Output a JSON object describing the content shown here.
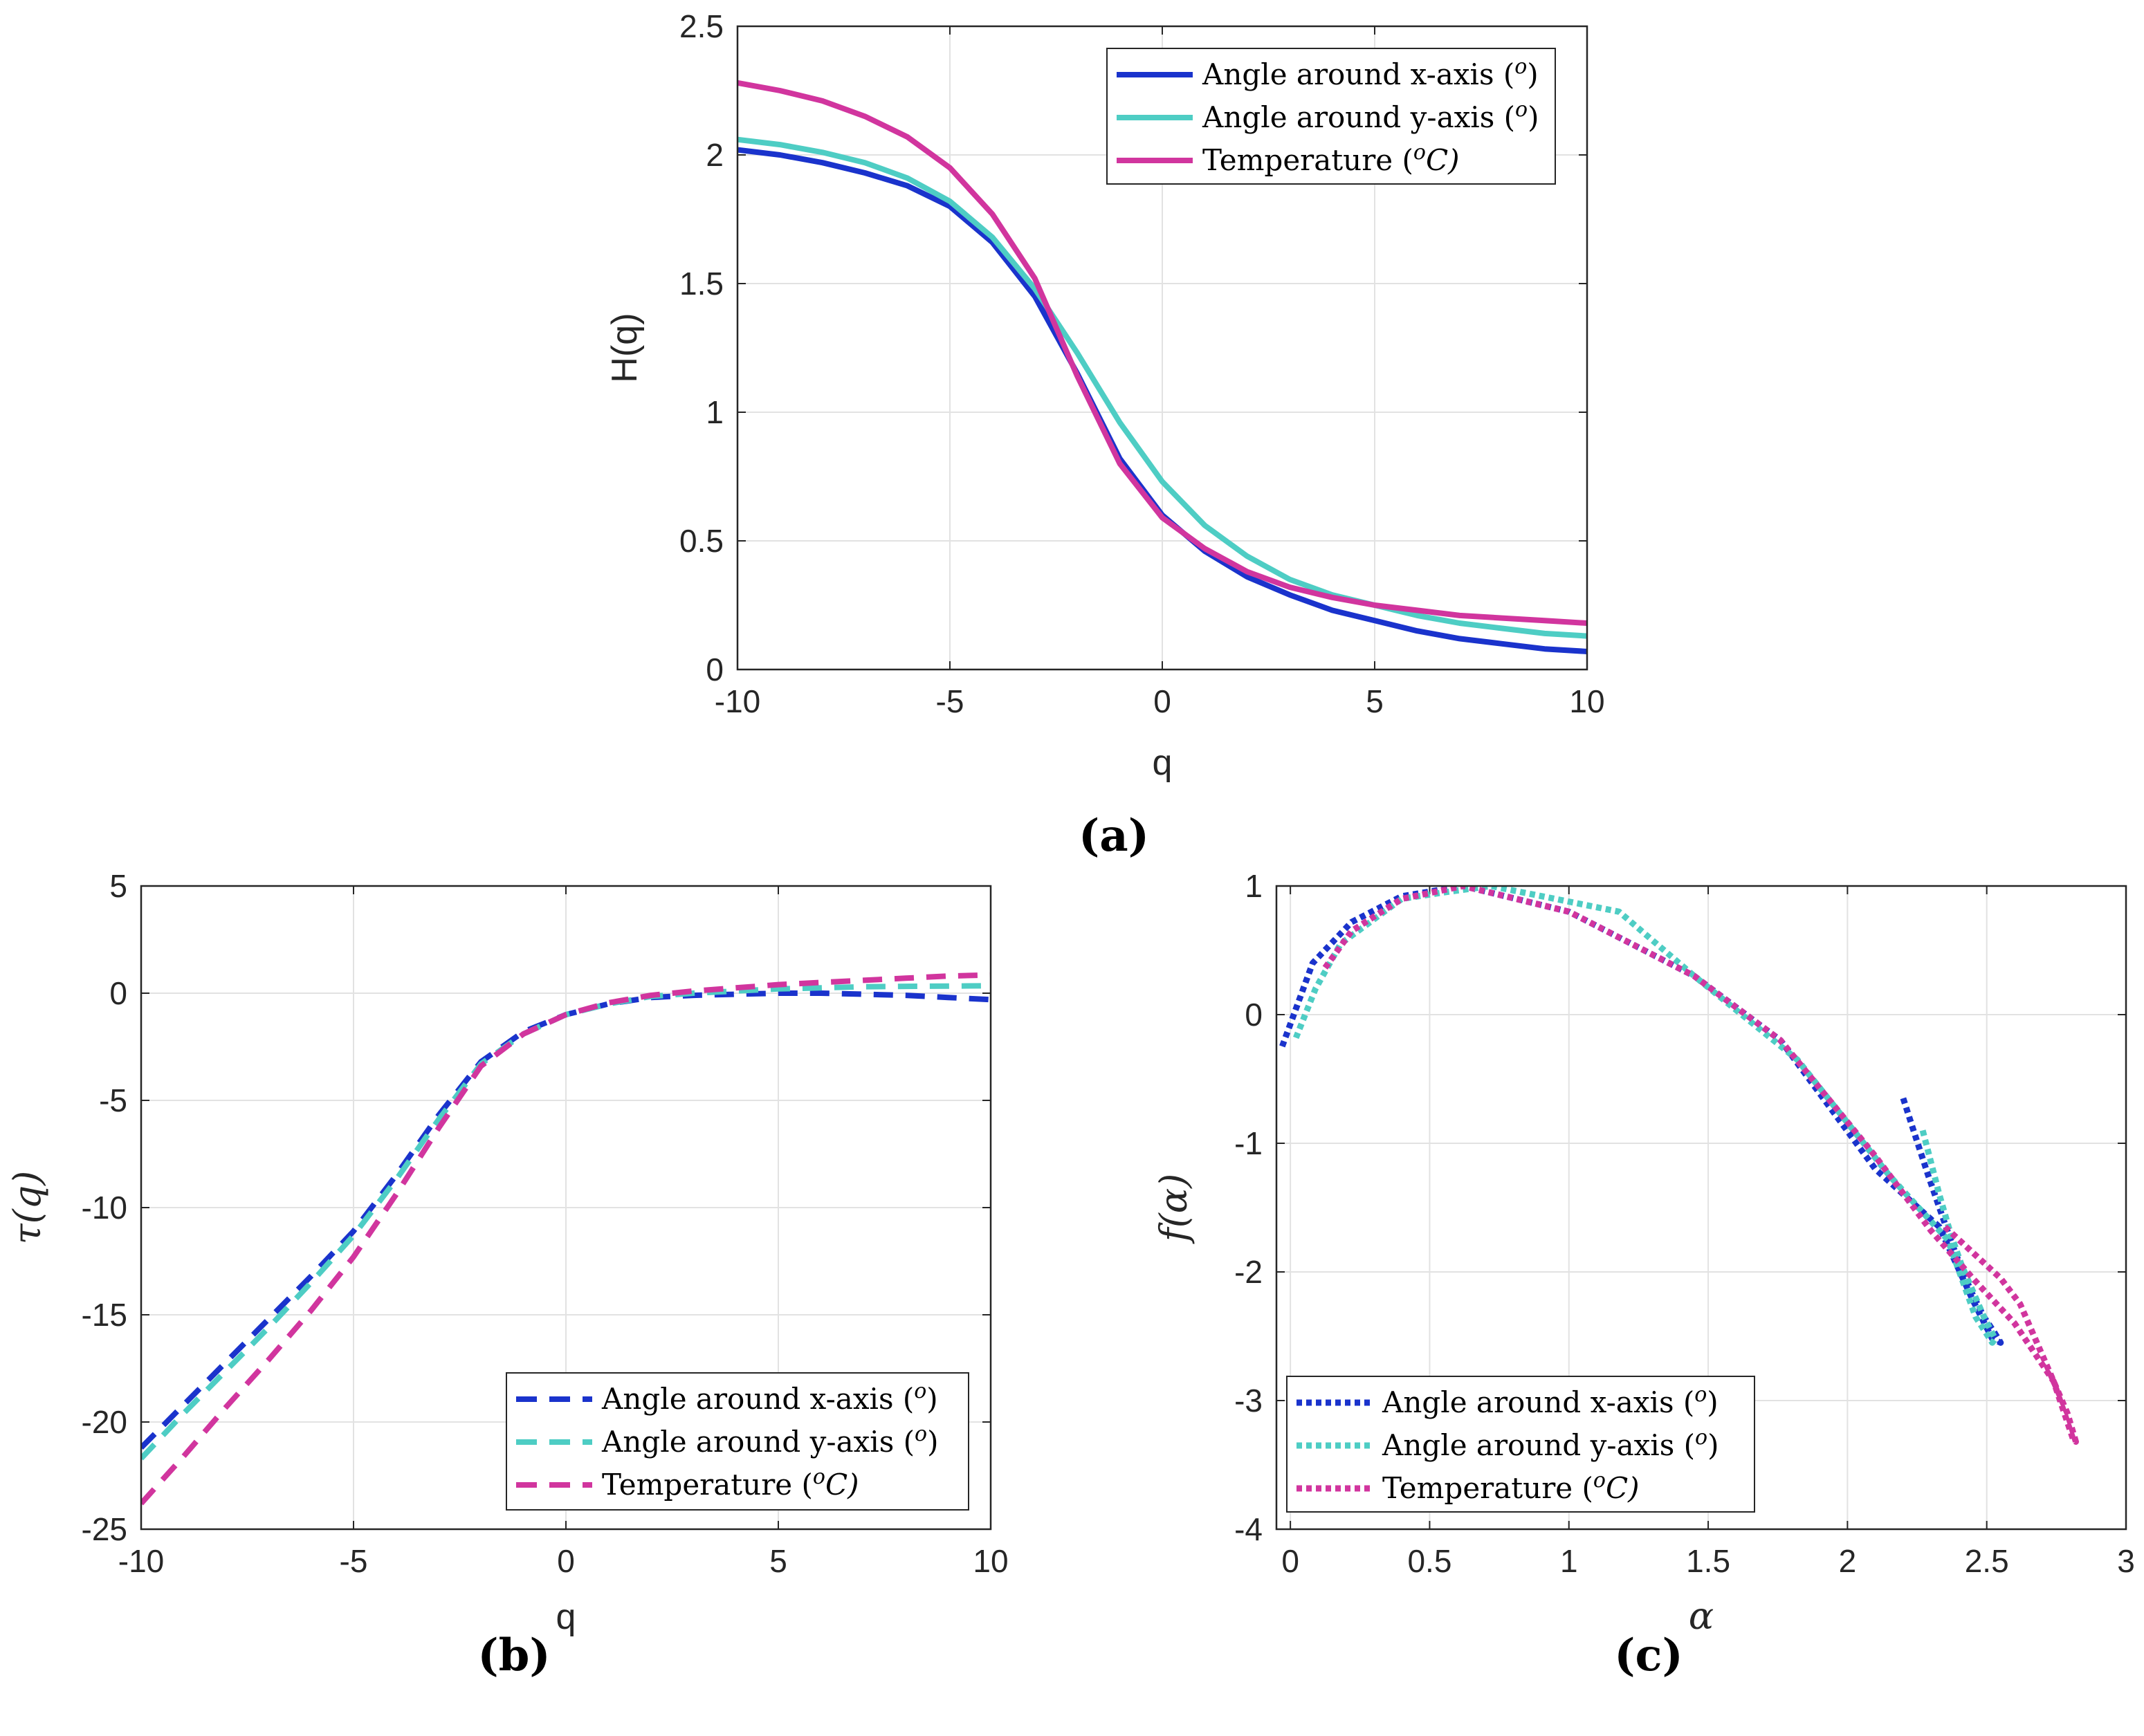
{
  "colors": {
    "x_axis": "#1a33cc",
    "y_axis": "#4ecdc4",
    "temperature": "#d1359e"
  },
  "panels": [
    {
      "caption": "(a)"
    },
    {
      "caption": "(b)"
    },
    {
      "caption": "(c)"
    }
  ],
  "chart_data": [
    {
      "id": "a",
      "type": "line",
      "line_style": "solid",
      "xlabel": "q",
      "ylabel": "H(q)",
      "xlim": [
        -10,
        10
      ],
      "ylim": [
        0,
        2.5
      ],
      "xticks": [
        "-10",
        "-5",
        "0",
        "5",
        "10"
      ],
      "yticks": [
        "0",
        "0.5",
        "1",
        "1.5",
        "2",
        "2.5"
      ],
      "grid": true,
      "legend_position": "top-right",
      "series": [
        {
          "name": "Angle around x-axis (o)",
          "legend_main": "Angle around x-axis (",
          "legend_sup": "o",
          "legend_tail": ")",
          "color_key": "x_axis",
          "x": [
            -10,
            -9,
            -8,
            -7,
            -6,
            -5,
            -4,
            -3,
            -2,
            -1,
            0,
            1,
            2,
            3,
            4,
            5,
            6,
            7,
            8,
            9,
            10
          ],
          "y": [
            2.02,
            2.0,
            1.97,
            1.93,
            1.88,
            1.8,
            1.66,
            1.45,
            1.15,
            0.82,
            0.6,
            0.46,
            0.36,
            0.29,
            0.23,
            0.19,
            0.15,
            0.12,
            0.1,
            0.08,
            0.07
          ]
        },
        {
          "name": "Angle around y-axis (o)",
          "legend_main": "Angle around y-axis (",
          "legend_sup": "o",
          "legend_tail": ")",
          "color_key": "y_axis",
          "x": [
            -10,
            -9,
            -8,
            -7,
            -6,
            -5,
            -4,
            -3,
            -2,
            -1,
            0,
            1,
            2,
            3,
            4,
            5,
            6,
            7,
            8,
            9,
            10
          ],
          "y": [
            2.06,
            2.04,
            2.01,
            1.97,
            1.91,
            1.82,
            1.68,
            1.48,
            1.23,
            0.96,
            0.73,
            0.56,
            0.44,
            0.35,
            0.29,
            0.25,
            0.21,
            0.18,
            0.16,
            0.14,
            0.13
          ]
        },
        {
          "name": "Temperature (oC)",
          "legend_main": "Temperature (",
          "legend_sup": "o",
          "legend_tail": "C)",
          "color_key": "temperature",
          "x": [
            -10,
            -9,
            -8,
            -7,
            -6,
            -5,
            -4,
            -3,
            -2,
            -1,
            0,
            1,
            2,
            3,
            4,
            5,
            6,
            7,
            8,
            9,
            10
          ],
          "y": [
            2.28,
            2.25,
            2.21,
            2.15,
            2.07,
            1.95,
            1.77,
            1.52,
            1.14,
            0.8,
            0.59,
            0.47,
            0.38,
            0.32,
            0.28,
            0.25,
            0.23,
            0.21,
            0.2,
            0.19,
            0.18
          ]
        }
      ]
    },
    {
      "id": "b",
      "type": "line",
      "line_style": "dashed",
      "xlabel": "q",
      "ylabel": "τ(q)",
      "xlim": [
        -10,
        10
      ],
      "ylim": [
        -25,
        5
      ],
      "xticks": [
        "-10",
        "-5",
        "0",
        "5",
        "10"
      ],
      "yticks": [
        "-25",
        "-20",
        "-15",
        "-10",
        "-5",
        "0",
        "5"
      ],
      "grid": true,
      "legend_position": "bottom-right",
      "series": [
        {
          "name": "Angle around x-axis (o)",
          "legend_main": "Angle around x-axis (",
          "legend_sup": "o",
          "legend_tail": ")",
          "color_key": "x_axis",
          "x": [
            -10,
            -9,
            -8,
            -7,
            -6,
            -5,
            -4,
            -3,
            -2,
            -1,
            0,
            1,
            2,
            3,
            4,
            5,
            6,
            7,
            8,
            9,
            10
          ],
          "y": [
            -21.2,
            -19.2,
            -17.2,
            -15.2,
            -13.2,
            -11.1,
            -8.5,
            -5.7,
            -3.2,
            -1.8,
            -1.0,
            -0.5,
            -0.2,
            -0.1,
            -0.05,
            0,
            0,
            -0.05,
            -0.1,
            -0.2,
            -0.3
          ]
        },
        {
          "name": "Angle around y-axis (o)",
          "legend_main": "Angle around y-axis (",
          "legend_sup": "o",
          "legend_tail": ")",
          "color_key": "y_axis",
          "x": [
            -10,
            -9,
            -8,
            -7,
            -6,
            -5,
            -4,
            -3,
            -2,
            -1,
            0,
            1,
            2,
            3,
            4,
            5,
            6,
            7,
            8,
            9,
            10
          ],
          "y": [
            -21.7,
            -19.6,
            -17.6,
            -15.6,
            -13.5,
            -11.3,
            -8.7,
            -5.9,
            -3.3,
            -1.9,
            -1.0,
            -0.5,
            -0.15,
            0,
            0.1,
            0.2,
            0.25,
            0.3,
            0.32,
            0.33,
            0.35
          ]
        },
        {
          "name": "Temperature (oC)",
          "legend_main": "Temperature (",
          "legend_sup": "o",
          "legend_tail": "C)",
          "color_key": "temperature",
          "x": [
            -10,
            -9,
            -8,
            -7,
            -6,
            -5,
            -4,
            -3,
            -2,
            -1,
            0,
            1,
            2,
            3,
            4,
            5,
            6,
            7,
            8,
            9,
            10
          ],
          "y": [
            -23.8,
            -21.6,
            -19.3,
            -17.1,
            -14.8,
            -12.3,
            -9.4,
            -6.3,
            -3.4,
            -1.9,
            -1.0,
            -0.45,
            -0.1,
            0.1,
            0.25,
            0.4,
            0.5,
            0.6,
            0.7,
            0.8,
            0.85
          ]
        }
      ]
    },
    {
      "id": "c",
      "type": "line",
      "line_style": "dotted",
      "xlabel": "α",
      "ylabel": "f(α)",
      "xlim": [
        -0.05,
        3
      ],
      "ylim": [
        -4,
        1
      ],
      "xticks": [
        "0",
        "0.5",
        "1",
        "1.5",
        "2",
        "2.5",
        "3"
      ],
      "yticks": [
        "-4",
        "-3",
        "-2",
        "-1",
        "0",
        "1"
      ],
      "grid": true,
      "legend_position": "bottom-left",
      "series": [
        {
          "name": "Angle around x-axis (o)",
          "legend_main": "Angle around x-axis (",
          "legend_sup": "o",
          "legend_tail": ")",
          "color_key": "x_axis",
          "x": [
            2.2,
            2.24,
            2.29,
            2.33,
            2.37,
            2.41,
            2.45,
            2.49,
            2.53,
            2.55,
            2.52,
            2.45,
            2.33,
            2.1,
            1.76,
            1.45,
            1.0,
            0.62,
            0.4,
            0.22,
            0.08,
            -0.03
          ],
          "y": [
            -0.65,
            -0.92,
            -1.25,
            -1.5,
            -1.75,
            -1.98,
            -2.18,
            -2.35,
            -2.48,
            -2.55,
            -2.52,
            -2.22,
            -1.65,
            -1.2,
            -0.2,
            0.3,
            0.8,
            1.0,
            0.92,
            0.72,
            0.4,
            -0.25
          ]
        },
        {
          "name": "Angle around y-axis (o)",
          "legend_main": "Angle around y-axis (",
          "legend_sup": "o",
          "legend_tail": ")",
          "color_key": "y_axis",
          "x": [
            2.27,
            2.3,
            2.33,
            2.37,
            2.41,
            2.45,
            2.49,
            2.53,
            2.52,
            2.46,
            2.36,
            2.15,
            1.82,
            1.45,
            1.18,
            0.72,
            0.55,
            0.4,
            0.18,
            0.09,
            0.02
          ],
          "y": [
            -0.9,
            -1.15,
            -1.4,
            -1.7,
            -1.95,
            -2.15,
            -2.35,
            -2.52,
            -2.55,
            -2.35,
            -1.75,
            -1.25,
            -0.35,
            0.3,
            0.8,
            1.0,
            0.95,
            0.9,
            0.55,
            0.2,
            -0.18
          ]
        },
        {
          "name": "Temperature (oC)",
          "legend_main": "Temperature (",
          "legend_sup": "o",
          "legend_tail": "C)",
          "color_key": "temperature",
          "x": [
            2.35,
            2.45,
            2.55,
            2.62,
            2.68,
            2.74,
            2.79,
            2.82,
            2.81,
            2.74,
            2.6,
            2.45,
            2.3,
            2.1,
            1.76,
            1.45,
            1.0,
            0.62,
            0.4,
            0.22,
            0.12
          ],
          "y": [
            -1.65,
            -1.85,
            -2.05,
            -2.25,
            -2.55,
            -2.85,
            -3.1,
            -3.32,
            -3.3,
            -2.85,
            -2.4,
            -2.05,
            -1.68,
            -1.1,
            -0.2,
            0.3,
            0.8,
            1.0,
            0.9,
            0.65,
            0.35
          ]
        }
      ]
    }
  ]
}
